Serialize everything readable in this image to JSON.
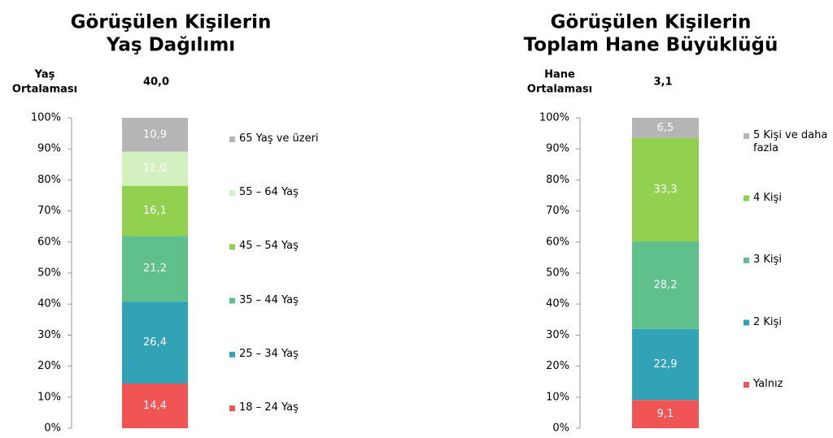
{
  "chart_data": [
    {
      "type": "stacked_bar",
      "title": [
        "Görüşülen Kişilerin",
        "Yaş Dağılımı"
      ],
      "annotation_label": [
        "Yaş",
        "Ortalaması"
      ],
      "annotation_value": "40,0",
      "categories": [
        null
      ],
      "ylim": [
        0,
        100
      ],
      "yticks": [
        {
          "value": 0,
          "label": "0%"
        },
        {
          "value": 10,
          "label": "10%"
        },
        {
          "value": 20,
          "label": "20%"
        },
        {
          "value": 30,
          "label": "30%"
        },
        {
          "value": 40,
          "label": "40%"
        },
        {
          "value": 50,
          "label": "50%"
        },
        {
          "value": 60,
          "label": "60%"
        },
        {
          "value": 70,
          "label": "70%"
        },
        {
          "value": 80,
          "label": "80%"
        },
        {
          "value": 90,
          "label": "90%"
        },
        {
          "value": 100,
          "label": "100%"
        }
      ],
      "series": [
        {
          "name": "18 – 24 Yaş",
          "color": "#f05454",
          "values": [
            14.4
          ],
          "value_labels": [
            "14,4"
          ]
        },
        {
          "name": "25 – 34 Yaş",
          "color": "#32a2b6",
          "values": [
            26.4
          ],
          "value_labels": [
            "26,4"
          ]
        },
        {
          "name": "35 – 44 Yaş",
          "color": "#5fc08c",
          "values": [
            21.2
          ],
          "value_labels": [
            "21,2"
          ]
        },
        {
          "name": "45 – 54 Yaş",
          "color": "#92d050",
          "values": [
            16.1
          ],
          "value_labels": [
            "16,1"
          ]
        },
        {
          "name": "55 – 64 Yaş",
          "color": "#d3f1c0",
          "values": [
            11.0
          ],
          "value_labels": [
            "11,0"
          ]
        },
        {
          "name": "65 Yaş ve üzeri",
          "color": "#b5b5b5",
          "values": [
            10.9
          ],
          "value_labels": [
            "10,9"
          ]
        }
      ]
    },
    {
      "type": "stacked_bar",
      "title": [
        "Görüşülen Kişilerin",
        "Toplam Hane Büyüklüğü"
      ],
      "annotation_label": [
        "Hane",
        "Ortalaması"
      ],
      "annotation_value": "3,1",
      "categories": [
        null
      ],
      "ylim": [
        0,
        100
      ],
      "yticks": [
        {
          "value": 0,
          "label": "0%"
        },
        {
          "value": 10,
          "label": "10%"
        },
        {
          "value": 20,
          "label": "20%"
        },
        {
          "value": 30,
          "label": "30%"
        },
        {
          "value": 40,
          "label": "40%"
        },
        {
          "value": 50,
          "label": "50%"
        },
        {
          "value": 60,
          "label": "60%"
        },
        {
          "value": 70,
          "label": "70%"
        },
        {
          "value": 80,
          "label": "80%"
        },
        {
          "value": 90,
          "label": "90%"
        },
        {
          "value": 100,
          "label": "100%"
        }
      ],
      "series": [
        {
          "name": "Yalnız",
          "color": "#f05454",
          "values": [
            9.1
          ],
          "value_labels": [
            "9,1"
          ]
        },
        {
          "name": "2 Kişi",
          "color": "#32a2b6",
          "values": [
            22.9
          ],
          "value_labels": [
            "22,9"
          ]
        },
        {
          "name": "3 Kişi",
          "color": "#5fc08c",
          "values": [
            28.2
          ],
          "value_labels": [
            "28,2"
          ]
        },
        {
          "name": "4 Kişi",
          "color": "#92d050",
          "values": [
            33.3
          ],
          "value_labels": [
            "33,3"
          ]
        },
        {
          "name": "5 Kişi ve daha fazla",
          "color": "#b5b5b5",
          "values": [
            6.5
          ],
          "value_labels": [
            "6,5"
          ]
        }
      ]
    }
  ]
}
